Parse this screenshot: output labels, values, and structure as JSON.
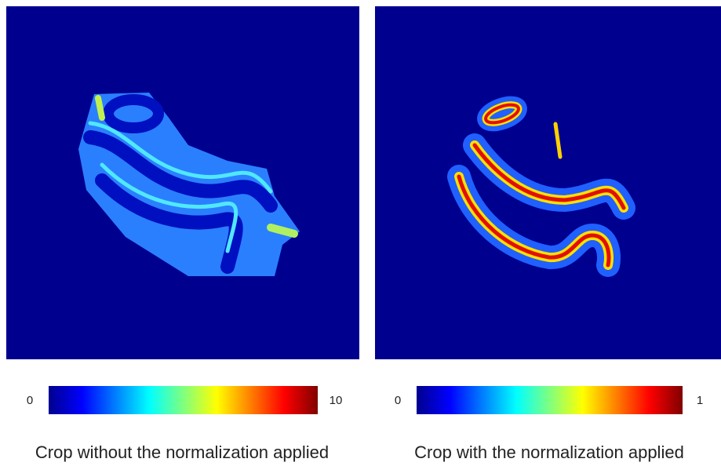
{
  "panels": [
    {
      "colorbar": {
        "min": 0,
        "max": 10
      },
      "caption": "Crop without the normalization applied"
    },
    {
      "colorbar": {
        "min": 0,
        "max": 1
      },
      "caption": "Crop with the normalization applied"
    }
  ]
}
